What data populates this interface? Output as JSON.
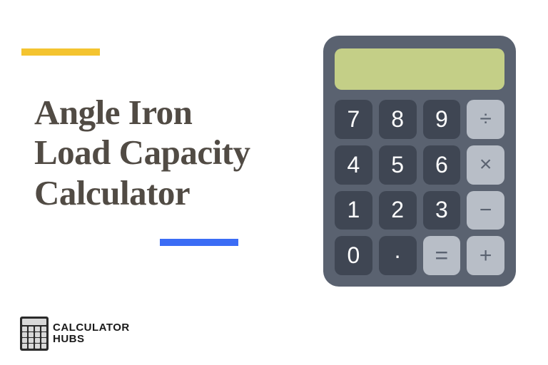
{
  "accents": {
    "yellow": "#f4c430",
    "blue": "#3b6cf5"
  },
  "title": {
    "line1": "Angle Iron",
    "line2": "Load Capacity",
    "line3": "Calculator",
    "color": "#514b44",
    "fontsize": 49
  },
  "logo": {
    "line1": "CALCULATOR",
    "line2": "HUBS"
  },
  "calculator": {
    "body_color": "#5a6270",
    "display_color": "#c4cf87",
    "num_btn_color": "#3f4653",
    "op_btn_color": "#b8bec7",
    "buttons": [
      {
        "label": "7",
        "type": "num"
      },
      {
        "label": "8",
        "type": "num"
      },
      {
        "label": "9",
        "type": "num"
      },
      {
        "label": "÷",
        "type": "op"
      },
      {
        "label": "4",
        "type": "num"
      },
      {
        "label": "5",
        "type": "num"
      },
      {
        "label": "6",
        "type": "num"
      },
      {
        "label": "×",
        "type": "op"
      },
      {
        "label": "1",
        "type": "num"
      },
      {
        "label": "2",
        "type": "num"
      },
      {
        "label": "3",
        "type": "num"
      },
      {
        "label": "−",
        "type": "op"
      },
      {
        "label": "0",
        "type": "num"
      },
      {
        "label": "·",
        "type": "dot"
      },
      {
        "label": "=",
        "type": "eq"
      },
      {
        "label": "+",
        "type": "op"
      }
    ]
  }
}
